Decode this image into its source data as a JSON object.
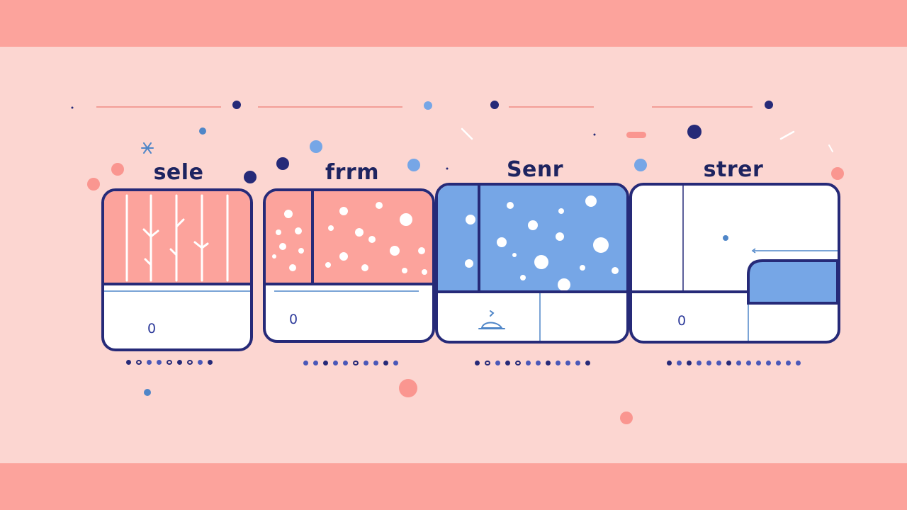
{
  "cards": [
    {
      "label": "sele",
      "field_value": "0"
    },
    {
      "label": "frrm",
      "field_value": "0"
    },
    {
      "label": "Senr"
    },
    {
      "label": "strer",
      "field_value": "0"
    }
  ],
  "colors": {
    "band": "#fca39c",
    "background": "#fcd6d1",
    "navy": "#262a78",
    "coral": "#fca39c",
    "blue": "#76a6e6"
  }
}
